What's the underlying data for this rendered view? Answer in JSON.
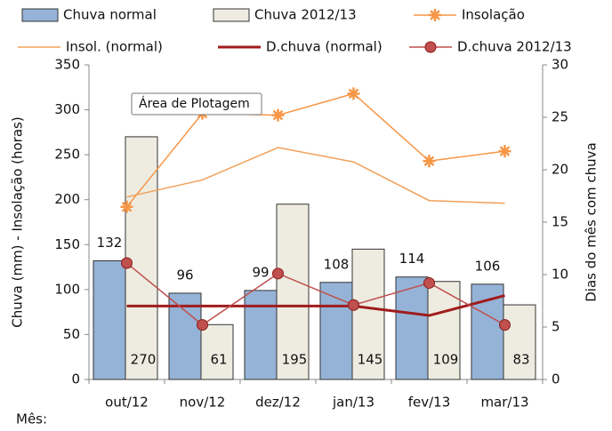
{
  "chart_data": {
    "type": "bar-line",
    "categories": [
      "out/12",
      "nov/12",
      "dez/12",
      "jan/13",
      "fev/13",
      "mar/13"
    ],
    "series": [
      {
        "name": "Chuva normal",
        "kind": "bar",
        "color": "#95b3d7",
        "values": [
          132,
          96,
          99,
          108,
          114,
          106
        ]
      },
      {
        "name": "Chuva 2012/13",
        "kind": "bar",
        "color": "#eeece1",
        "values": [
          270,
          61,
          195,
          145,
          109,
          83
        ]
      },
      {
        "name": "Insolação",
        "kind": "line",
        "marker": "star",
        "color": "#f79646",
        "values": [
          192,
          296,
          294,
          318,
          243,
          254
        ]
      },
      {
        "name": "Insol. (normal)",
        "kind": "line",
        "color": "#f0a05a",
        "values": [
          203,
          222,
          258,
          242,
          199,
          196
        ]
      },
      {
        "name": "D.chuva (normal)",
        "kind": "line",
        "axis": "y2",
        "color": "#a01c1c",
        "values": [
          7,
          7,
          7,
          7,
          6.1,
          8
        ]
      },
      {
        "name": "D.chuva 2012/13",
        "kind": "line",
        "axis": "y2",
        "marker": "circle",
        "color": "#c0504d",
        "values": [
          11.1,
          5.2,
          10.1,
          7.1,
          9.2,
          5.2
        ]
      }
    ],
    "ylabel": "Chuva (mm) - Insolação (horas)",
    "y2label": "Dias do mês com chuva",
    "xlabel": "Mês:",
    "tooltip": "Área de Plotagem",
    "ylim": [
      0,
      350
    ],
    "yticks": [
      0,
      50,
      100,
      150,
      200,
      250,
      300,
      350
    ],
    "y2lim": [
      0,
      30
    ],
    "y2ticks": [
      0,
      5,
      10,
      15,
      20,
      25,
      30
    ]
  }
}
